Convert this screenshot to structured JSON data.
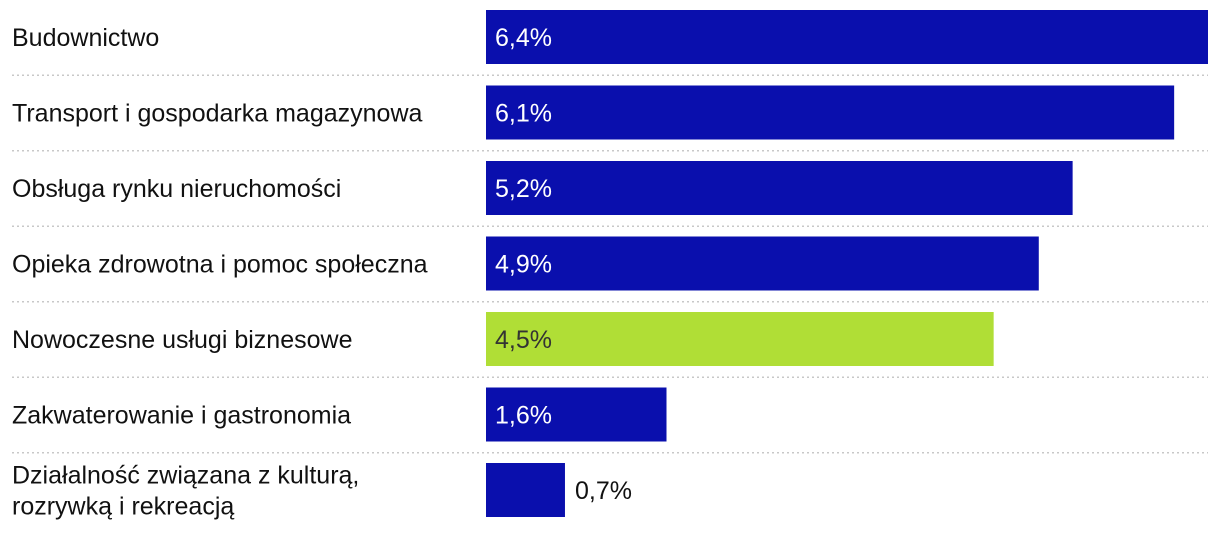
{
  "chart_data": {
    "type": "bar",
    "orientation": "horizontal",
    "categories": [
      "Budownictwo",
      "Transport i gospodarka magazynowa",
      "Obsługa rynku nieruchomości",
      "Opieka zdrowotna i pomoc społeczna",
      "Nowoczesne usługi biznesowe",
      "Zakwaterowanie i gastronomia",
      "Działalność związana z kulturą, rozrywką i rekreacją"
    ],
    "category_lines": [
      [
        "Budownictwo"
      ],
      [
        "Transport i gospodarka magazynowa"
      ],
      [
        "Obsługa rynku nieruchomości"
      ],
      [
        "Opieka zdrowotna i pomoc społeczna"
      ],
      [
        "Nowoczesne usługi biznesowe"
      ],
      [
        "Zakwaterowanie i gastronomia"
      ],
      [
        "Działalność związana z kulturą,",
        "rozrywką i rekreacją"
      ]
    ],
    "values": [
      6.4,
      6.1,
      5.2,
      4.9,
      4.5,
      1.6,
      0.7
    ],
    "value_labels": [
      "6,4%",
      "6,1%",
      "5,2%",
      "4,9%",
      "4,5%",
      "1,6%",
      "0,7%"
    ],
    "highlight_index": 4,
    "colors": {
      "default": "#0a0fad",
      "highlight": "#b0de36",
      "label_on_default": "#ffffff",
      "label_on_highlight": "#333333",
      "label_outside": "#111111"
    },
    "title": "",
    "xlabel": "",
    "ylabel": "",
    "xlim": [
      0,
      6.4
    ],
    "grid": false,
    "legend": "none"
  }
}
